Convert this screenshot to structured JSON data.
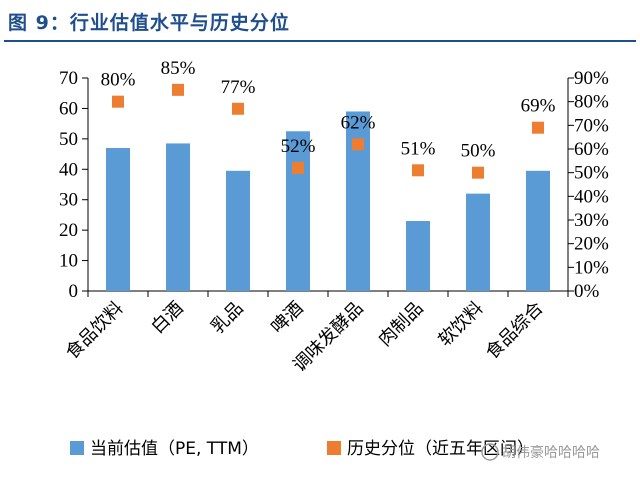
{
  "title": "图 9：行业估值水平与历史分位",
  "watermark": "胡伟豪哈哈哈哈",
  "colors": {
    "bar": "#5b9bd5",
    "marker": "#ed7d31",
    "title": "#1f4e8c"
  },
  "chart_data": {
    "type": "bar",
    "categories": [
      "食品饮料",
      "白酒",
      "乳品",
      "啤酒",
      "调味发酵品",
      "肉制品",
      "软饮料",
      "食品综合"
    ],
    "series": [
      {
        "name": "当前估值（PE, TTM）",
        "axis": "left",
        "kind": "bar",
        "values": [
          47,
          48.5,
          39.5,
          52.5,
          59,
          23,
          32,
          39.5
        ]
      },
      {
        "name": "历史分位（近五年区间）",
        "axis": "right",
        "kind": "marker",
        "values": [
          80,
          85,
          77,
          52,
          62,
          51,
          50,
          69
        ],
        "labels": [
          "80%",
          "85%",
          "77%",
          "52%",
          "62%",
          "51%",
          "50%",
          "69%"
        ]
      }
    ],
    "ylim_left": [
      0,
      70
    ],
    "yticks_left": [
      0,
      10,
      20,
      30,
      40,
      50,
      60,
      70
    ],
    "ylim_right": [
      0,
      90
    ],
    "yticks_right": [
      "0%",
      "10%",
      "20%",
      "30%",
      "40%",
      "50%",
      "60%",
      "70%",
      "80%",
      "90%"
    ],
    "legend": [
      "当前估值（PE, TTM）",
      "历史分位（近五年区间）"
    ],
    "legend_position": "bottom"
  }
}
